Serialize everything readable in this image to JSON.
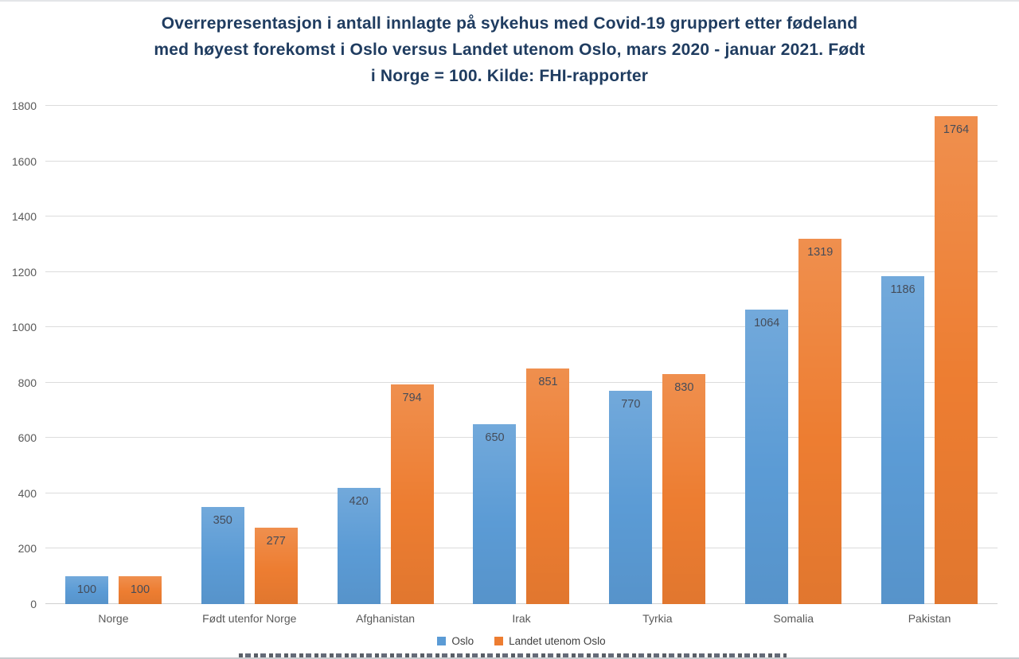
{
  "title": {
    "lines": [
      "Overrepresentasjon i antall innlagte på sykehus med Covid-19 gruppert etter fødeland",
      "med høyest forekomst i Oslo versus Landet utenom Oslo, mars 2020 - januar 2021. Født",
      "i Norge = 100. Kilde: FHI-rapporter"
    ]
  },
  "chart_data": {
    "type": "bar",
    "title": "Overrepresentasjon i antall innlagte på sykehus med Covid-19 gruppert etter fødeland med høyest forekomst i Oslo versus Landet utenom Oslo, mars 2020 - januar 2021. Født i Norge = 100. Kilde: FHI-rapporter",
    "categories": [
      "Norge",
      "Født utenfor Norge",
      "Afghanistan",
      "Irak",
      "Tyrkia",
      "Somalia",
      "Pakistan"
    ],
    "series": [
      {
        "name": "Oslo",
        "color": "#5B9BD5",
        "values": [
          100,
          350,
          420,
          650,
          770,
          1064,
          1186
        ]
      },
      {
        "name": "Landet utenom Oslo",
        "color": "#ED7D31",
        "values": [
          100,
          277,
          794,
          851,
          830,
          1319,
          1764
        ]
      }
    ],
    "xlabel": "",
    "ylabel": "",
    "ylim": [
      0,
      1800
    ],
    "y_ticks": [
      0,
      200,
      400,
      600,
      800,
      1000,
      1200,
      1400,
      1600,
      1800
    ],
    "grid": "horizontal",
    "legend_position": "bottom",
    "data_labels": "inside-top",
    "colors": {
      "title_text": "#1f3c60",
      "axis_text": "#595959",
      "data_label_text": "#454c59",
      "gridline": "#dcdcdc"
    }
  }
}
